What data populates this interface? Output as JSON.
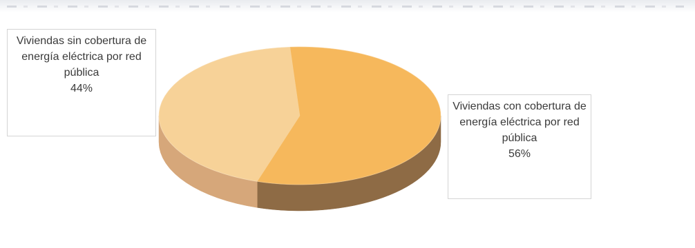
{
  "chart_data": {
    "type": "pie",
    "title": "",
    "categories": [
      "Viviendas sin cobertura de energía eléctrica por red pública",
      "Viviendas con cobertura de energía eléctrica por red pública"
    ],
    "values": [
      44,
      56
    ],
    "value_labels": [
      "44%",
      "56%"
    ],
    "colors": [
      "#F7D298",
      "#F6B85C"
    ],
    "side_colors": [
      "#D6A77A",
      "#8E6B45"
    ],
    "style": "3d-tilted",
    "legend": "none",
    "data_labels": "callout-boxes"
  },
  "labels": {
    "left": {
      "name": "Viviendas sin cobertura de energía eléctrica por red pública",
      "pct": "44%"
    },
    "right": {
      "name": "Viviendas con cobertura de energía eléctrica por red pública",
      "pct": "56%"
    }
  }
}
